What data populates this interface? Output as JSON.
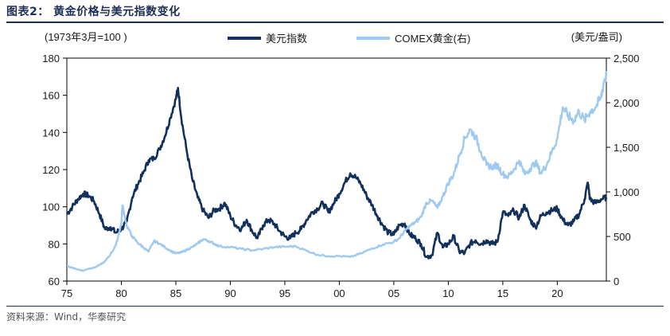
{
  "title": "图表2：  黄金价格与美元指数变化",
  "source": "资料来源：Wind，华泰研究",
  "chart_data": {
    "type": "line",
    "left_axis_label": "(1973年3月=100 )",
    "right_axis_label": "(美元/盎司)",
    "x_range": [
      1975,
      2024.5
    ],
    "x_ticks": [
      1975,
      1980,
      1985,
      1990,
      1995,
      2000,
      2005,
      2010,
      2015,
      2020
    ],
    "x_tick_labels": [
      "75",
      "80",
      "85",
      "90",
      "95",
      "00",
      "05",
      "10",
      "15",
      "20"
    ],
    "left_ylim": [
      60,
      180
    ],
    "left_ticks": [
      60,
      80,
      100,
      120,
      140,
      160,
      180
    ],
    "left_tick_labels": [
      "60",
      "80",
      "100",
      "120",
      "140",
      "160",
      "180"
    ],
    "right_ylim": [
      0,
      2500
    ],
    "right_ticks": [
      0,
      500,
      1000,
      1500,
      2000,
      2500
    ],
    "right_tick_labels": [
      "0",
      "500",
      "1,000",
      "1,500",
      "2,000",
      "2,500"
    ],
    "legend_position": "top-center",
    "series": [
      {
        "name": "美元指数",
        "axis": "left",
        "color": "#11305c",
        "x": [
          1975.0,
          1975.5,
          1976.0,
          1976.5,
          1977.0,
          1977.5,
          1978.0,
          1978.5,
          1979.0,
          1979.5,
          1980.0,
          1980.5,
          1981.0,
          1981.5,
          1982.0,
          1982.5,
          1983.0,
          1983.5,
          1984.0,
          1984.5,
          1985.0,
          1985.2,
          1985.5,
          1986.0,
          1986.5,
          1987.0,
          1987.5,
          1988.0,
          1988.5,
          1989.0,
          1989.5,
          1990.0,
          1990.5,
          1991.0,
          1991.5,
          1992.0,
          1992.5,
          1993.0,
          1993.5,
          1994.0,
          1994.5,
          1995.0,
          1995.5,
          1996.0,
          1996.5,
          1997.0,
          1997.5,
          1998.0,
          1998.5,
          1999.0,
          1999.5,
          2000.0,
          2000.5,
          2001.0,
          2001.5,
          2002.0,
          2002.5,
          2003.0,
          2003.5,
          2004.0,
          2004.5,
          2005.0,
          2005.5,
          2006.0,
          2006.5,
          2007.0,
          2007.5,
          2008.0,
          2008.5,
          2009.0,
          2009.5,
          2010.0,
          2010.5,
          2011.0,
          2011.5,
          2012.0,
          2012.5,
          2013.0,
          2013.5,
          2014.0,
          2014.5,
          2015.0,
          2015.5,
          2016.0,
          2016.5,
          2017.0,
          2017.5,
          2018.0,
          2018.5,
          2019.0,
          2019.5,
          2020.0,
          2020.5,
          2021.0,
          2021.5,
          2022.0,
          2022.5,
          2022.8,
          2023.0,
          2023.5,
          2024.0,
          2024.5
        ],
        "y": [
          96,
          100,
          104,
          107,
          106,
          103,
          96,
          88,
          89,
          86,
          88,
          92,
          105,
          112,
          118,
          125,
          126,
          131,
          138,
          148,
          158,
          164,
          148,
          130,
          115,
          105,
          98,
          94,
          98,
          99,
          102,
          95,
          90,
          88,
          93,
          87,
          83,
          90,
          93,
          91,
          87,
          84,
          83,
          86,
          88,
          93,
          97,
          99,
          102,
          97,
          102,
          107,
          113,
          118,
          116,
          112,
          106,
          101,
          95,
          90,
          86,
          85,
          90,
          91,
          85,
          83,
          80,
          73,
          74,
          86,
          78,
          80,
          84,
          76,
          75,
          80,
          82,
          80,
          82,
          80,
          81,
          97,
          95,
          98,
          94,
          101,
          93,
          89,
          95,
          97,
          98,
          99,
          93,
          90,
          92,
          96,
          104,
          113,
          104,
          102,
          104,
          105
        ]
      },
      {
        "name": "COMEX黄金(右)",
        "axis": "right",
        "color": "#9fcaf0",
        "x": [
          1975.0,
          1975.5,
          1976.0,
          1976.5,
          1977.0,
          1977.5,
          1978.0,
          1978.5,
          1979.0,
          1979.5,
          1980.0,
          1980.1,
          1980.5,
          1981.0,
          1981.5,
          1982.0,
          1982.5,
          1983.0,
          1983.5,
          1984.0,
          1984.5,
          1985.0,
          1985.5,
          1986.0,
          1986.5,
          1987.0,
          1987.5,
          1988.0,
          1988.5,
          1989.0,
          1990.0,
          1991.0,
          1992.0,
          1993.0,
          1994.0,
          1995.0,
          1996.0,
          1997.0,
          1998.0,
          1999.0,
          2000.0,
          2001.0,
          2002.0,
          2003.0,
          2004.0,
          2005.0,
          2005.5,
          2006.0,
          2006.5,
          2007.0,
          2007.5,
          2008.0,
          2008.5,
          2009.0,
          2009.5,
          2010.0,
          2010.5,
          2011.0,
          2011.5,
          2012.0,
          2012.5,
          2013.0,
          2013.5,
          2014.0,
          2014.5,
          2015.0,
          2015.5,
          2016.0,
          2016.5,
          2017.0,
          2017.5,
          2018.0,
          2018.5,
          2019.0,
          2019.5,
          2020.0,
          2020.5,
          2021.0,
          2021.5,
          2022.0,
          2022.5,
          2023.0,
          2023.5,
          2024.0,
          2024.3,
          2024.5
        ],
        "y": [
          170,
          150,
          130,
          115,
          140,
          150,
          180,
          220,
          300,
          400,
          650,
          850,
          620,
          500,
          430,
          380,
          330,
          450,
          420,
          380,
          340,
          310,
          320,
          350,
          380,
          420,
          470,
          450,
          420,
          390,
          380,
          360,
          345,
          360,
          380,
          385,
          390,
          340,
          295,
          280,
          280,
          270,
          310,
          365,
          410,
          440,
          480,
          560,
          620,
          660,
          720,
          880,
          900,
          820,
          950,
          1100,
          1200,
          1400,
          1600,
          1700,
          1620,
          1450,
          1300,
          1280,
          1300,
          1200,
          1170,
          1250,
          1350,
          1200,
          1260,
          1330,
          1210,
          1300,
          1450,
          1600,
          1950,
          1850,
          1800,
          1900,
          1800,
          1900,
          1950,
          2050,
          2250,
          2300
        ]
      }
    ]
  }
}
